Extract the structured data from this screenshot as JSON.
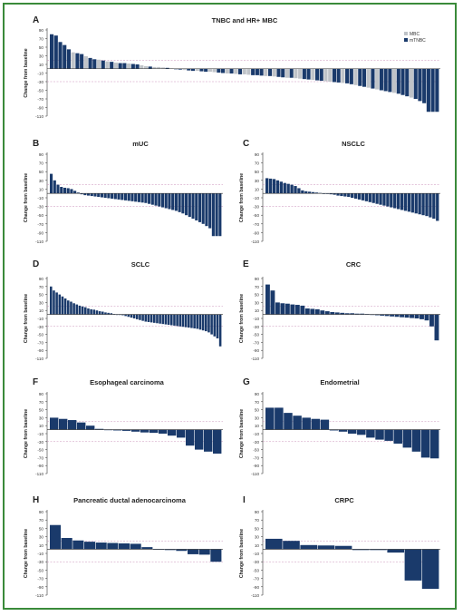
{
  "colors": {
    "navy": "#1a3a6b",
    "grey": "#bfc3c8",
    "frame": "#3a8a3a",
    "refline": "#c98fb8"
  },
  "y_ticks": [
    "90",
    "70",
    "50",
    "30",
    "10",
    "-10",
    "-30",
    "-50",
    "-70",
    "-90",
    "-110"
  ],
  "reference_lines": [
    20,
    -30
  ],
  "chart_data": [
    {
      "panel": "A",
      "type": "bar",
      "title": "TNBC and HR+ MBC",
      "ylabel": "Change from baseline",
      "ylim": [
        -110,
        90
      ],
      "grid": false,
      "legend": {
        "placement": "top-right",
        "entries": [
          {
            "label": "MBC",
            "color": "#bfc3c8"
          },
          {
            "label": "mTNBC",
            "color": "#1a3a6b"
          }
        ]
      },
      "values": [
        80,
        77,
        62,
        55,
        45,
        38,
        36,
        34,
        29,
        25,
        22,
        21,
        19,
        17,
        16,
        14,
        13,
        13,
        12,
        11,
        10,
        8,
        6,
        5,
        4,
        4,
        3,
        2,
        1,
        0,
        -2,
        -3,
        -4,
        -5,
        -5,
        -6,
        -7,
        -7,
        -8,
        -9,
        -10,
        -11,
        -11,
        -12,
        -13,
        -13,
        -14,
        -15,
        -15,
        -16,
        -17,
        -17,
        -18,
        -19,
        -20,
        -21,
        -21,
        -22,
        -23,
        -24,
        -25,
        -26,
        -27,
        -28,
        -29,
        -30,
        -31,
        -32,
        -33,
        -34,
        -36,
        -38,
        -40,
        -42,
        -44,
        -46,
        -48,
        -50,
        -52,
        -54,
        -56,
        -58,
        -61,
        -64,
        -67,
        -70,
        -75,
        -80,
        -100,
        -100,
        -100
      ],
      "groups": [
        "n",
        "n",
        "n",
        "n",
        "n",
        "g",
        "n",
        "n",
        "g",
        "n",
        "n",
        "g",
        "n",
        "g",
        "n",
        "g",
        "n",
        "n",
        "g",
        "n",
        "n",
        "g",
        "g",
        "n",
        "g",
        "g",
        "g",
        "n",
        "g",
        "n",
        "n",
        "g",
        "n",
        "n",
        "g",
        "n",
        "n",
        "g",
        "g",
        "n",
        "n",
        "g",
        "n",
        "g",
        "n",
        "g",
        "g",
        "n",
        "n",
        "n",
        "g",
        "n",
        "g",
        "n",
        "n",
        "g",
        "n",
        "g",
        "g",
        "n",
        "n",
        "g",
        "n",
        "n",
        "g",
        "g",
        "n",
        "n",
        "g",
        "n",
        "n",
        "g",
        "n",
        "n",
        "g",
        "n",
        "g",
        "n",
        "n",
        "n",
        "g",
        "n",
        "n",
        "n",
        "g",
        "n",
        "n",
        "n",
        "n",
        "n",
        "n"
      ]
    },
    {
      "panel": "B",
      "type": "bar",
      "title": "mUC",
      "ylabel": "Change from baseline",
      "ylim": [
        -110,
        90
      ],
      "values": [
        45,
        30,
        20,
        15,
        13,
        12,
        10,
        6,
        2,
        -2,
        -4,
        -5,
        -6,
        -7,
        -8,
        -9,
        -10,
        -11,
        -12,
        -13,
        -14,
        -15,
        -16,
        -17,
        -18,
        -19,
        -20,
        -21,
        -22,
        -24,
        -26,
        -28,
        -30,
        -32,
        -34,
        -36,
        -38,
        -40,
        -43,
        -46,
        -50,
        -54,
        -58,
        -62,
        -66,
        -70,
        -75,
        -80,
        -98,
        -98,
        -98
      ]
    },
    {
      "panel": "C",
      "type": "bar",
      "title": "NSCLC",
      "ylabel": "Change from baseline",
      "ylim": [
        -110,
        90
      ],
      "values": [
        35,
        34,
        33,
        30,
        27,
        24,
        22,
        20,
        17,
        12,
        7,
        5,
        4,
        3,
        2,
        1,
        0,
        -1,
        -2,
        -3,
        -5,
        -6,
        -7,
        -8,
        -10,
        -12,
        -14,
        -16,
        -18,
        -20,
        -22,
        -24,
        -26,
        -28,
        -30,
        -32,
        -34,
        -36,
        -38,
        -40,
        -42,
        -44,
        -46,
        -48,
        -50,
        -52,
        -55,
        -58,
        -63
      ]
    },
    {
      "panel": "D",
      "type": "bar",
      "title": "SCLC",
      "ylabel": "Change from baseline",
      "ylim": [
        -110,
        90
      ],
      "values": [
        70,
        60,
        55,
        50,
        45,
        40,
        35,
        32,
        28,
        25,
        22,
        20,
        18,
        15,
        13,
        12,
        10,
        8,
        7,
        5,
        4,
        3,
        1,
        0,
        -1,
        -2,
        -4,
        -6,
        -8,
        -10,
        -12,
        -14,
        -16,
        -18,
        -19,
        -20,
        -21,
        -22,
        -23,
        -24,
        -25,
        -26,
        -27,
        -28,
        -29,
        -30,
        -31,
        -32,
        -33,
        -34,
        -35,
        -36,
        -38,
        -40,
        -42,
        -45,
        -50,
        -55,
        -60,
        -80
      ]
    },
    {
      "panel": "E",
      "type": "bar",
      "title": "CRC",
      "ylabel": "Change from baseline",
      "ylim": [
        -110,
        90
      ],
      "values": [
        75,
        60,
        30,
        28,
        27,
        25,
        24,
        22,
        15,
        14,
        13,
        10,
        8,
        6,
        5,
        4,
        3,
        3,
        2,
        2,
        1,
        -1,
        -2,
        -3,
        -4,
        -5,
        -6,
        -7,
        -8,
        -9,
        -10,
        -12,
        -15,
        -30,
        -65
      ]
    },
    {
      "panel": "F",
      "type": "bar",
      "title": "Esophageal carcinoma",
      "ylabel": "Change from baseline",
      "ylim": [
        -110,
        90
      ],
      "values": [
        30,
        27,
        24,
        18,
        10,
        2,
        0,
        -2,
        -3,
        -5,
        -7,
        -8,
        -10,
        -15,
        -20,
        -40,
        -50,
        -55,
        -60
      ]
    },
    {
      "panel": "G",
      "type": "bar",
      "title": "Endometrial",
      "ylabel": "Change from baseline",
      "ylim": [
        -110,
        90
      ],
      "values": [
        55,
        55,
        42,
        35,
        30,
        27,
        25,
        -2,
        -5,
        -10,
        -13,
        -20,
        -25,
        -28,
        -35,
        -45,
        -55,
        -70,
        -72
      ]
    },
    {
      "panel": "H",
      "type": "bar",
      "title": "Pancreatic ductal adenocarcinoma",
      "ylabel": "Change from baseline",
      "ylim": [
        -110,
        90
      ],
      "values": [
        58,
        27,
        21,
        18,
        16,
        15,
        14,
        13,
        5,
        -1,
        -2,
        -4,
        -12,
        -13,
        -30
      ]
    },
    {
      "panel": "I",
      "type": "bar",
      "title": "CRPC",
      "ylabel": "Change from baseline",
      "ylim": [
        -110,
        90
      ],
      "values": [
        25,
        20,
        10,
        9,
        8,
        -2,
        -2,
        -8,
        -75,
        -95
      ]
    }
  ]
}
